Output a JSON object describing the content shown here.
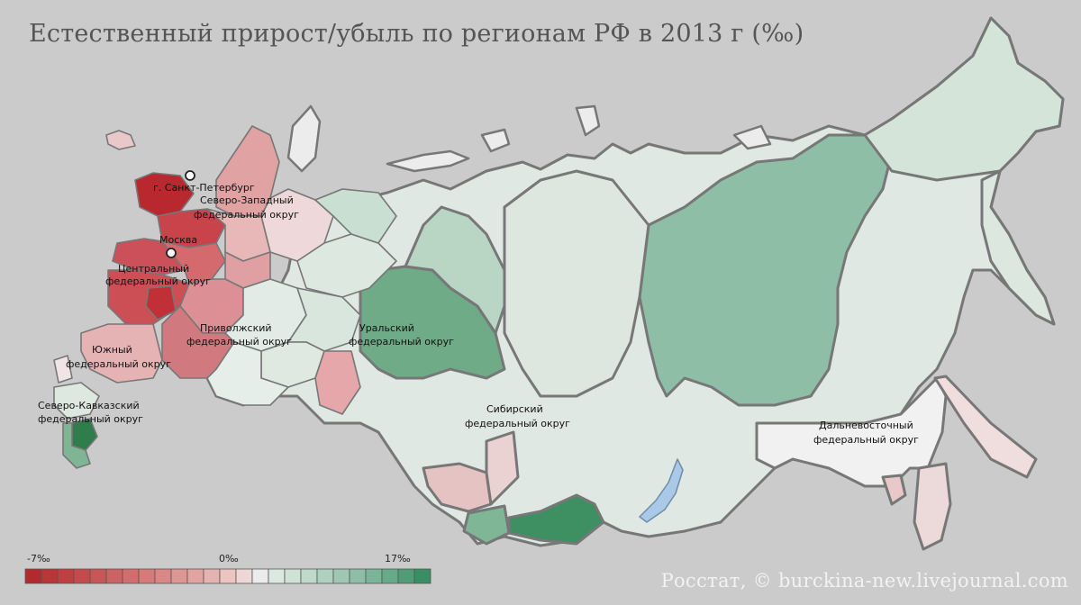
{
  "title": "Естественный прирост/убыль по регионам РФ в 2013 г (‰)",
  "credit": "Росстат, © burckina-new.livejournal.com",
  "colors": {
    "background": "#cbcbcb",
    "negative_max": "#c0272d",
    "neutral": "#ececec",
    "positive_max": "#2e7d4a",
    "border": "#777777",
    "water": "#a9c9e6"
  },
  "cities": [
    {
      "name": "г. Санкт-Петербург"
    },
    {
      "name": "Москва"
    }
  ],
  "federal_districts": [
    {
      "id": "nw",
      "line1": "Северо-Западный",
      "line2": "федеральный округ"
    },
    {
      "id": "c",
      "line1": "Центральный",
      "line2": "федеральный округ"
    },
    {
      "id": "s",
      "line1": "Южный",
      "line2": "федеральный округ"
    },
    {
      "id": "nc",
      "line1": "Северо-Кавказский",
      "line2": "федеральный округ"
    },
    {
      "id": "v",
      "line1": "Приволжский",
      "line2": "федеральный округ"
    },
    {
      "id": "u",
      "line1": "Уральский",
      "line2": "федеральный округ"
    },
    {
      "id": "sib",
      "line1": "Сибирский",
      "line2": "федеральный округ"
    },
    {
      "id": "fe",
      "line1": "Дальневосточный",
      "line2": "федеральный округ"
    }
  ],
  "legend": {
    "min_label": "-7‰",
    "zero_label": "0‰",
    "max_label": "17‰",
    "min": -7,
    "max": 17,
    "steps": 24,
    "step_colors": [
      "#b22a2e",
      "#b83538",
      "#be4043",
      "#c34b4d",
      "#c85657",
      "#cd6262",
      "#d16e6d",
      "#d67b79",
      "#da8886",
      "#de9693",
      "#e2a4a1",
      "#e7b3b1",
      "#ecc5c3",
      "#efd7d6",
      "#ebebeb",
      "#dde8e1",
      "#cfe2d6",
      "#bfdacb",
      "#afd1bf",
      "#9fc8b3",
      "#8ebfa6",
      "#7bb598",
      "#66aa89",
      "#4f9c76",
      "#3a8e65"
    ]
  },
  "regions": [
    {
      "district": "nc",
      "value": 15
    },
    {
      "district": "nc",
      "value": 10
    },
    {
      "district": "s",
      "value": -3
    },
    {
      "district": "c",
      "value": -6
    },
    {
      "district": "nw",
      "value": -5
    },
    {
      "district": "v",
      "value": -2
    },
    {
      "district": "u",
      "value": 8
    },
    {
      "district": "sib",
      "value": 2
    },
    {
      "district": "fe",
      "value": 5
    }
  ]
}
